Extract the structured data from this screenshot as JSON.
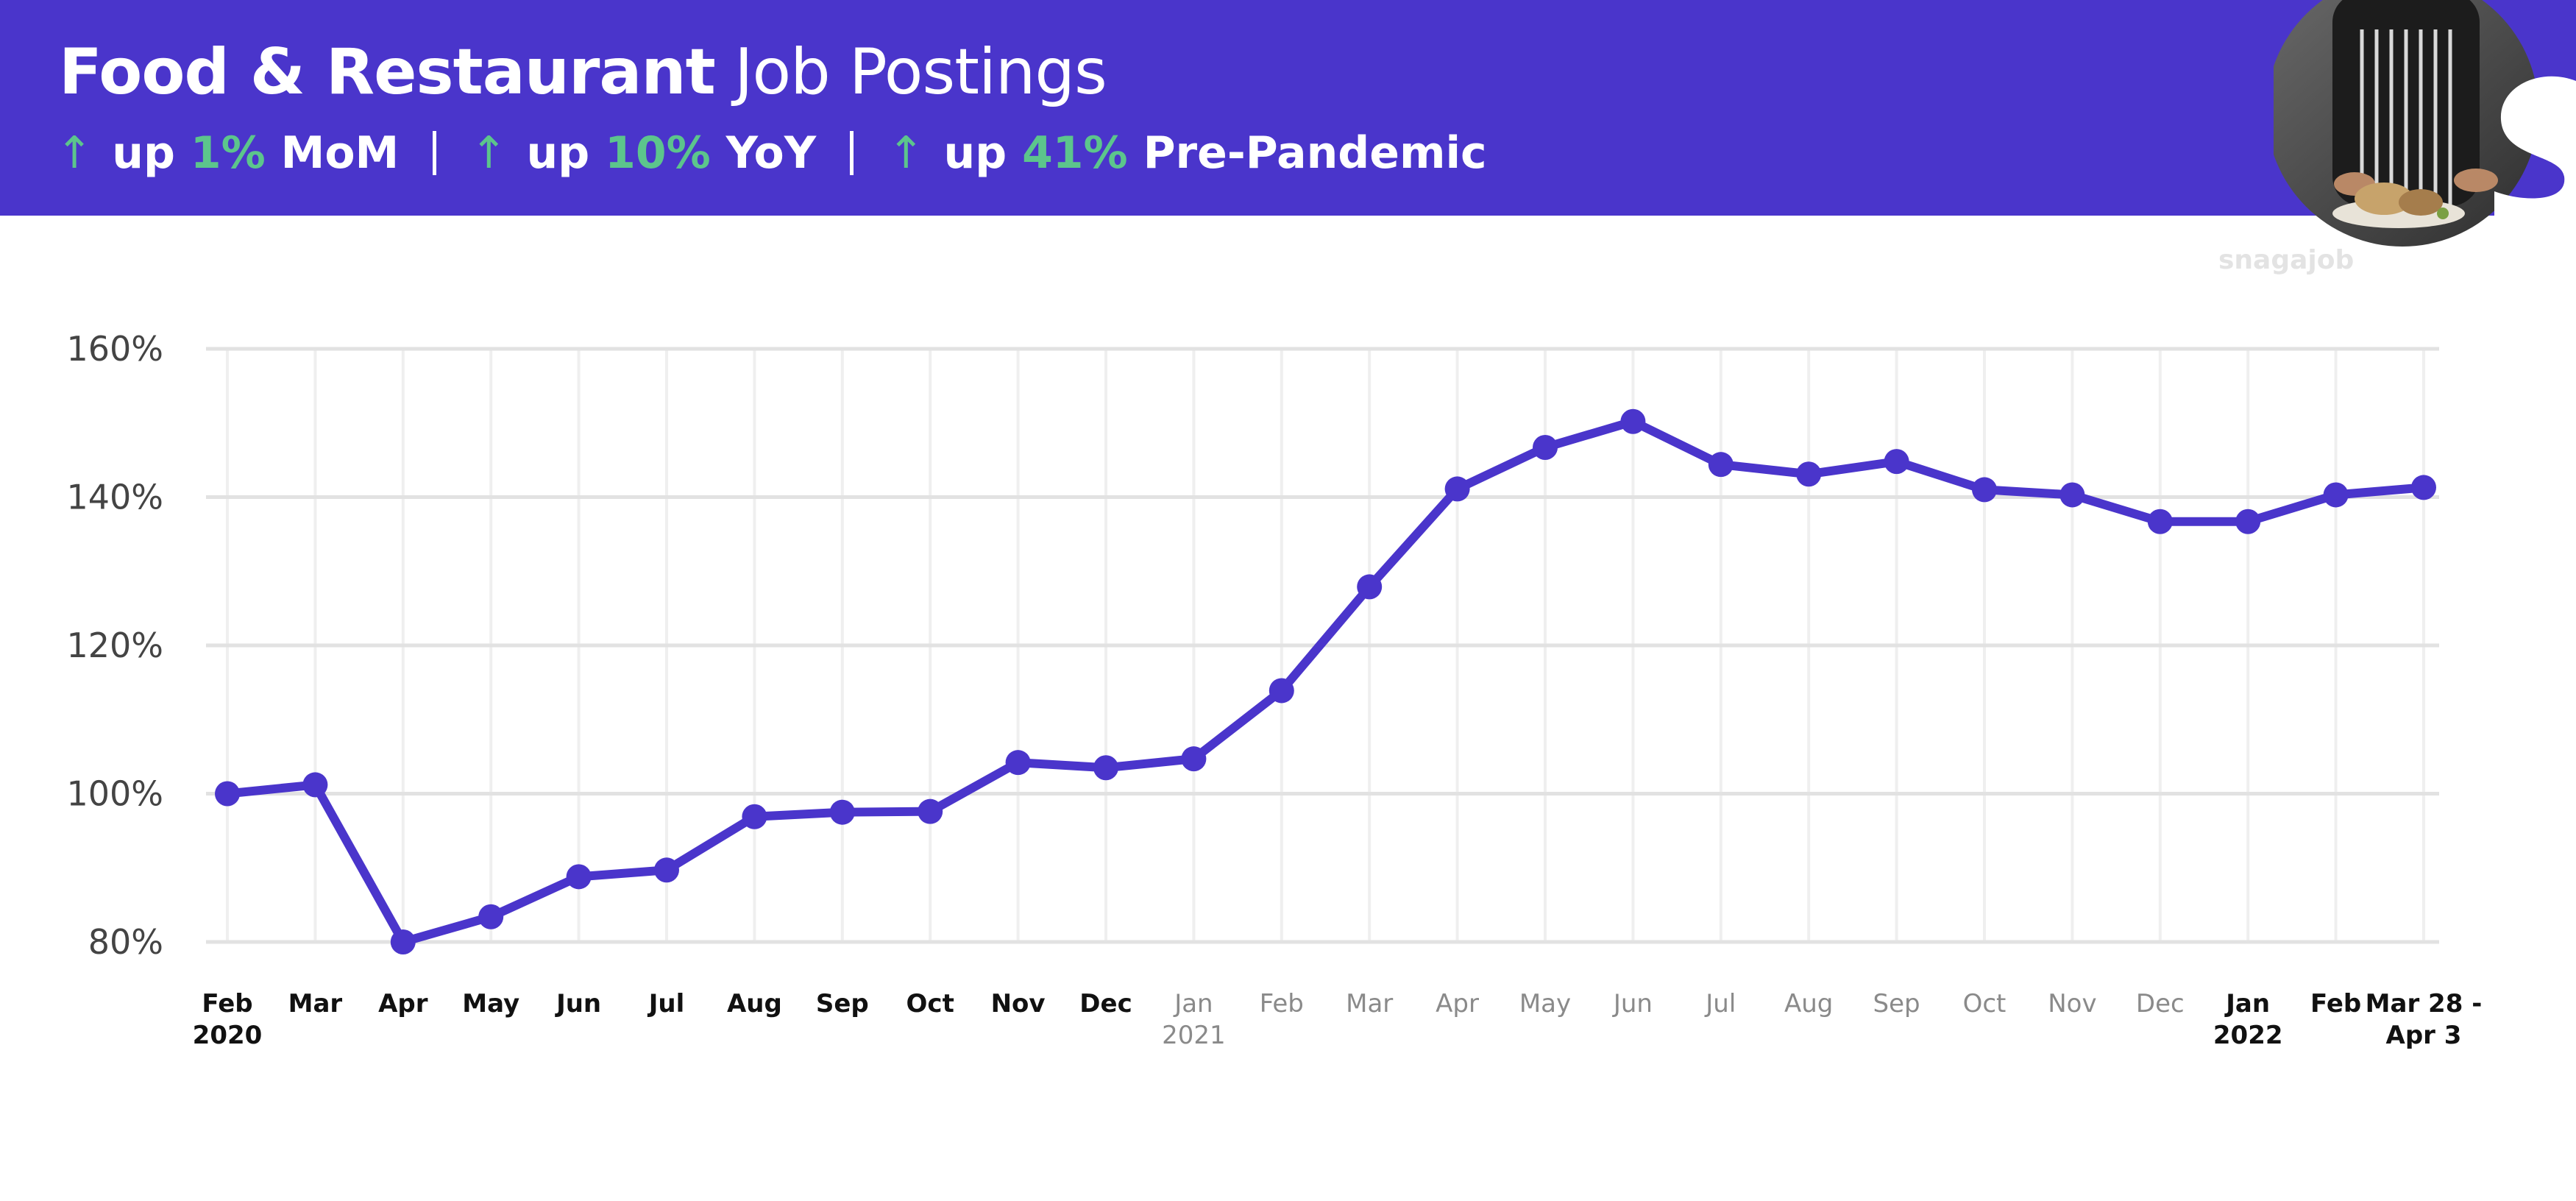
{
  "header": {
    "title_bold": "Food & Restaurant",
    "title_light": "Job Postings",
    "stats": [
      {
        "arrow": "↑",
        "prefix": "up",
        "value": "1%",
        "suffix": "MoM"
      },
      {
        "arrow": "↑",
        "prefix": "up",
        "value": "10%",
        "suffix": "YoY"
      },
      {
        "arrow": "↑",
        "prefix": "up",
        "value": "41%",
        "suffix": "Pre-Pandemic"
      }
    ]
  },
  "brand": {
    "watermark": "snagajob",
    "logo_letter": "S"
  },
  "colors": {
    "header_bg": "#4a35cb",
    "line": "#4a35cb",
    "positive": "#5cc58c",
    "muted_label": "#8a8a8a"
  },
  "chart_data": {
    "type": "line",
    "title": "Food & Restaurant Job Postings",
    "ylim": [
      80,
      160
    ],
    "yticks": [
      "160%",
      "140%",
      "120%",
      "100%",
      "80%"
    ],
    "ytick_values": [
      160,
      140,
      120,
      100,
      80
    ],
    "grid": true,
    "categories": [
      {
        "label": "Feb",
        "sub": "2020",
        "style": "dark"
      },
      {
        "label": "Mar",
        "sub": "",
        "style": "dark"
      },
      {
        "label": "Apr",
        "sub": "",
        "style": "dark"
      },
      {
        "label": "May",
        "sub": "",
        "style": "dark"
      },
      {
        "label": "Jun",
        "sub": "",
        "style": "dark"
      },
      {
        "label": "Jul",
        "sub": "",
        "style": "dark"
      },
      {
        "label": "Aug",
        "sub": "",
        "style": "dark"
      },
      {
        "label": "Sep",
        "sub": "",
        "style": "dark"
      },
      {
        "label": "Oct",
        "sub": "",
        "style": "dark"
      },
      {
        "label": "Nov",
        "sub": "",
        "style": "dark"
      },
      {
        "label": "Dec",
        "sub": "",
        "style": "dark"
      },
      {
        "label": "Jan",
        "sub": "2021",
        "style": "muted"
      },
      {
        "label": "Feb",
        "sub": "",
        "style": "muted"
      },
      {
        "label": "Mar",
        "sub": "",
        "style": "muted"
      },
      {
        "label": "Apr",
        "sub": "",
        "style": "muted"
      },
      {
        "label": "May",
        "sub": "",
        "style": "muted"
      },
      {
        "label": "Jun",
        "sub": "",
        "style": "muted"
      },
      {
        "label": "Jul",
        "sub": "",
        "style": "muted"
      },
      {
        "label": "Aug",
        "sub": "",
        "style": "muted"
      },
      {
        "label": "Sep",
        "sub": "",
        "style": "muted"
      },
      {
        "label": "Oct",
        "sub": "",
        "style": "muted"
      },
      {
        "label": "Nov",
        "sub": "",
        "style": "muted"
      },
      {
        "label": "Dec",
        "sub": "",
        "style": "muted"
      },
      {
        "label": "Jan",
        "sub": "2022",
        "style": "dark"
      },
      {
        "label": "Feb",
        "sub": "",
        "style": "dark"
      },
      {
        "label": "Mar 28 -",
        "sub": "Apr 3",
        "style": "dark"
      }
    ],
    "values": [
      100,
      101.2,
      80,
      83.4,
      88.8,
      89.7,
      96.9,
      97.5,
      97.6,
      104.2,
      103.5,
      104.7,
      113.9,
      127.9,
      141.1,
      146.7,
      150.2,
      144.4,
      143.1,
      144.8,
      141.0,
      140.3,
      136.7,
      136.7,
      140.3,
      141.3
    ]
  }
}
